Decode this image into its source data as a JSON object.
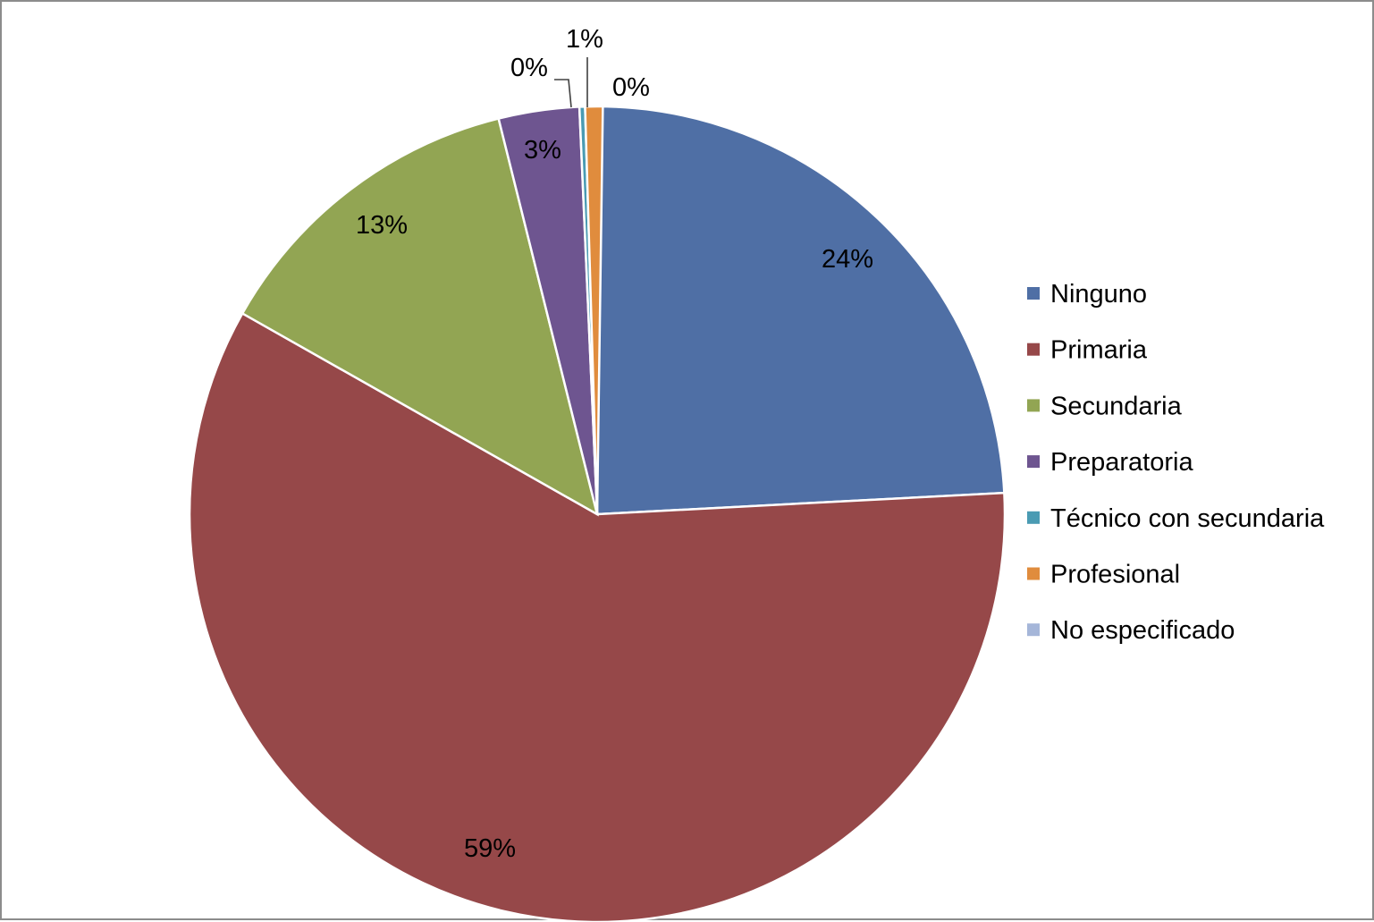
{
  "chart_data": {
    "type": "pie",
    "categories": [
      "Ninguno",
      "Primaria",
      "Secundaria",
      "Preparatoria",
      "Técnico con secundaria",
      "Profesional",
      "No especificado"
    ],
    "values": [
      24,
      59,
      13,
      3,
      0,
      1,
      0
    ],
    "data_labels": [
      "24%",
      "59%",
      "13%",
      "3%",
      "0%",
      "1%",
      "0%"
    ],
    "colors": [
      "#4F6FA5",
      "#964849",
      "#92A553",
      "#6E5590",
      "#4A9BB3",
      "#E08C3D",
      "#A5B6D9"
    ],
    "legend": "right",
    "start_angle": "12 o'clock",
    "direction": "clockwise"
  }
}
